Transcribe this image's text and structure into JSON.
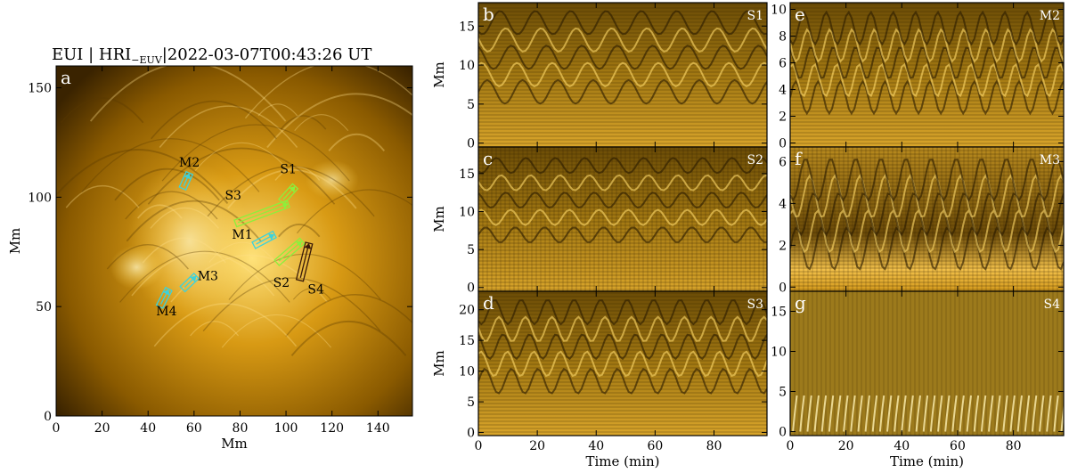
{
  "figure": {
    "title": "EUI | HRI−EUV |2022-03-07T00:43:26 UT",
    "title_main": "EUI | HRI",
    "title_sub": "−EUV",
    "title_tail": "|2022-03-07T00:43:26 UT"
  },
  "colors": {
    "euv_dark": "#1a0f00",
    "euv_mid": "#8a5a00",
    "euv_bright": "#ffd24a",
    "slit_green": "#8cf03c",
    "slit_cyan": "#3cd2dc",
    "slit_brown": "#3a1a08",
    "plot_bg": "#a07a14"
  },
  "chart_data": [
    {
      "panel": "a",
      "type": "image",
      "xlabel": "Mm",
      "ylabel": "Mm",
      "xlim": [
        0,
        155
      ],
      "ylim": [
        0,
        160
      ],
      "xticks": [
        0,
        20,
        40,
        60,
        80,
        100,
        120,
        140
      ],
      "yticks": [
        0,
        50,
        100,
        150
      ],
      "slits": [
        {
          "label": "S1",
          "color": "green",
          "x": [
            98,
            104
          ],
          "y": [
            98,
            105
          ]
        },
        {
          "label": "S2",
          "color": "green",
          "x": [
            96,
            107
          ],
          "y": [
            70,
            80
          ]
        },
        {
          "label": "S3",
          "color": "green",
          "x": [
            78,
            101
          ],
          "y": [
            88,
            97
          ]
        },
        {
          "label": "S4",
          "color": "brown",
          "x": [
            106,
            110
          ],
          "y": [
            62,
            79
          ]
        },
        {
          "label": "M1",
          "color": "cyan",
          "x": [
            86,
            95
          ],
          "y": [
            78,
            83
          ]
        },
        {
          "label": "M2",
          "color": "cyan",
          "x": [
            55,
            58
          ],
          "y": [
            104,
            111
          ]
        },
        {
          "label": "M3",
          "color": "cyan",
          "x": [
            55,
            61
          ],
          "y": [
            58,
            64
          ]
        },
        {
          "label": "M4",
          "color": "cyan",
          "x": [
            45,
            49
          ],
          "y": [
            50,
            58
          ]
        }
      ],
      "label_positions": [
        {
          "label": "M2",
          "x": 58,
          "y": 114
        },
        {
          "label": "S1",
          "x": 101,
          "y": 111
        },
        {
          "label": "S3",
          "x": 77,
          "y": 99
        },
        {
          "label": "M1",
          "x": 81,
          "y": 81
        },
        {
          "label": "M3",
          "x": 66,
          "y": 62
        },
        {
          "label": "S2",
          "x": 98,
          "y": 59
        },
        {
          "label": "S4",
          "x": 113,
          "y": 56
        },
        {
          "label": "M4",
          "x": 48,
          "y": 46
        }
      ]
    },
    {
      "panel": "b",
      "tag": "S1",
      "type": "heatmap",
      "xlabel": "",
      "ylabel": "Mm",
      "xlim": [
        0,
        98
      ],
      "ylim": [
        -0.5,
        18
      ],
      "xticks": [
        0,
        20,
        40,
        60,
        80
      ],
      "yticks": [
        0,
        5,
        10,
        15
      ],
      "oscillation": {
        "center_mm": 11,
        "amplitude_mm": 1.5,
        "period_min": 12
      }
    },
    {
      "panel": "c",
      "tag": "S2",
      "type": "heatmap",
      "xlabel": "",
      "ylabel": "Mm",
      "xlim": [
        0,
        98
      ],
      "ylim": [
        -0.5,
        18.5
      ],
      "xticks": [
        0,
        20,
        40,
        60,
        80
      ],
      "yticks": [
        0,
        5,
        10,
        15
      ],
      "oscillation": {
        "center_mm": 11.5,
        "amplitude_mm": 1.0,
        "period_min": 10
      }
    },
    {
      "panel": "d",
      "tag": "S3",
      "type": "heatmap",
      "xlabel": "Time (min)",
      "ylabel": "Mm",
      "xlim": [
        0,
        98
      ],
      "ylim": [
        -0.5,
        23
      ],
      "xticks": [
        0,
        20,
        40,
        60,
        80
      ],
      "yticks": [
        0,
        5,
        10,
        15,
        20
      ],
      "oscillation": {
        "center_mm": 14,
        "amplitude_mm": 2.0,
        "period_min": 9
      }
    },
    {
      "panel": "e",
      "tag": "M2",
      "type": "heatmap",
      "xlabel": "",
      "ylabel": "",
      "xlim": [
        0,
        98
      ],
      "ylim": [
        -0.3,
        10.5
      ],
      "xticks": [
        0,
        20,
        40,
        60,
        80
      ],
      "yticks": [
        0,
        2,
        4,
        6,
        8,
        10
      ],
      "oscillation": {
        "center_mm": 6,
        "amplitude_mm": 1.2,
        "period_min": 8
      }
    },
    {
      "panel": "f",
      "tag": "M3",
      "type": "heatmap",
      "xlabel": "",
      "ylabel": "",
      "xlim": [
        0,
        98
      ],
      "ylim": [
        -0.2,
        6.7
      ],
      "xticks": [
        0,
        20,
        40,
        60,
        80
      ],
      "yticks": [
        0,
        2,
        4,
        6
      ],
      "oscillation": {
        "center_mm": 3.5,
        "amplitude_mm": 1.0,
        "period_min": 9
      }
    },
    {
      "panel": "g",
      "tag": "S4",
      "type": "heatmap",
      "xlabel": "Time (min)",
      "ylabel": "",
      "xlim": [
        0,
        98
      ],
      "ylim": [
        -0.5,
        17.5
      ],
      "xticks": [
        0,
        20,
        40,
        60,
        80
      ],
      "yticks": [
        0,
        5,
        10,
        15
      ],
      "oscillation": {
        "center_mm": 1,
        "amplitude_mm": 0.5,
        "period_min": 3
      }
    }
  ]
}
